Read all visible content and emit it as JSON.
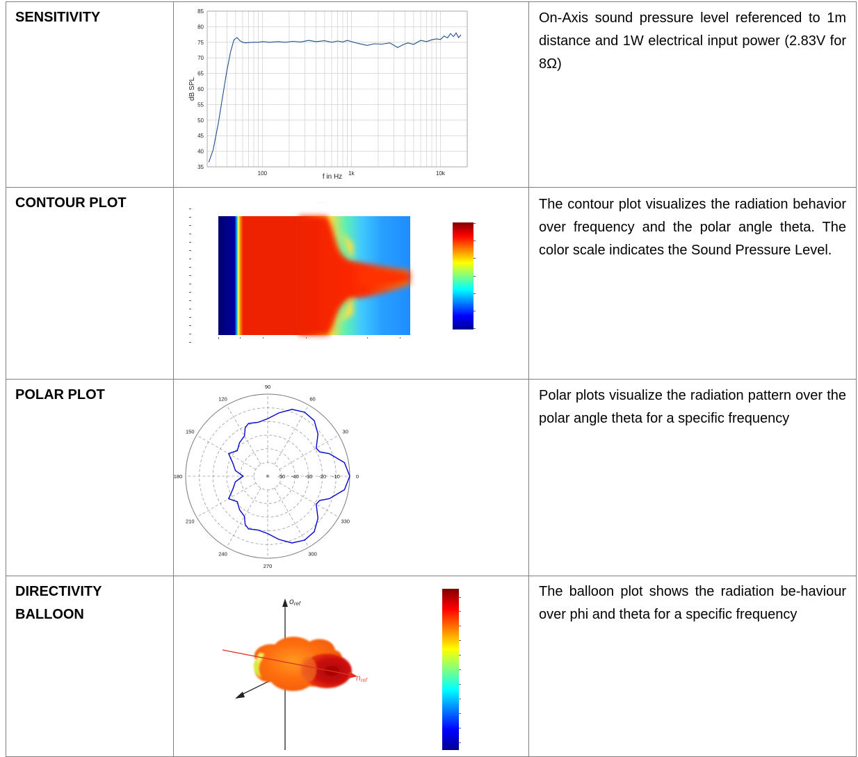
{
  "rows": [
    {
      "label": "SENSITIVITY",
      "description": "On-Axis sound pressure level referenced to 1m distance and 1W electrical input power (2.83V for 8Ω)"
    },
    {
      "label": "CONTOUR PLOT",
      "description": "The contour plot visualizes the radiation behavior over frequency and the polar angle theta. The color scale indicates the Sound Pressure Level."
    },
    {
      "label": "POLAR PLOT",
      "description": "Polar plots visualize the radiation pattern over the polar angle theta for a specific frequency"
    },
    {
      "label": "DIRECTIVITY BALLOON",
      "description": "The balloon plot shows the radiation be-­haviour over phi and theta for a specific frequency"
    }
  ],
  "chart_data": [
    {
      "type": "line",
      "xlabel": "f in Hz",
      "ylabel": "dB SPL",
      "x_scale": "log",
      "xlim": [
        24,
        20000
      ],
      "ylim": [
        35,
        85
      ],
      "grid": true,
      "x_ticks": [
        "100",
        "1k",
        "10k"
      ],
      "y_ticks": [
        35,
        40,
        45,
        50,
        55,
        60,
        65,
        70,
        75,
        80,
        85
      ],
      "series": [
        {
          "color": "#1f4e8c",
          "x": [
            25,
            28,
            32,
            36,
            40,
            44,
            48,
            52,
            56,
            60,
            65,
            70,
            80,
            90,
            100,
            120,
            150,
            180,
            220,
            270,
            330,
            400,
            500,
            600,
            700,
            800,
            900,
            1000,
            1200,
            1500,
            1800,
            2200,
            2700,
            3300,
            3800,
            4300,
            5000,
            6000,
            7000,
            8000,
            9000,
            10000,
            11000,
            12000,
            13000,
            14000,
            15000,
            16000,
            17000
          ],
          "y": [
            36.5,
            40.5,
            49,
            58,
            66,
            72,
            75.8,
            76.5,
            75.5,
            75,
            74.8,
            74.9,
            75,
            75,
            75.2,
            75,
            75.2,
            75,
            75.3,
            75.1,
            75.6,
            75.2,
            75.5,
            75,
            75.4,
            75.1,
            75.6,
            75.2,
            74.6,
            74,
            74.5,
            74.4,
            74.8,
            73.3,
            74.2,
            74.8,
            74.3,
            75.6,
            75.2,
            75.8,
            76.1,
            75.9,
            77,
            76.4,
            77.8,
            76.8,
            78,
            76.5,
            77.4
          ]
        }
      ]
    },
    {
      "type": "heatmap",
      "title": "",
      "colormap": "jet",
      "x_scale": "log",
      "y_axis": "theta",
      "colorbar": true
    },
    {
      "type": "polar",
      "angle_labels": [
        "0",
        "30",
        "60",
        "90",
        "120",
        "150",
        "180",
        "210",
        "240",
        "270",
        "300",
        "330"
      ],
      "radial_labels": [
        "-50",
        "-40",
        "-30",
        "-20",
        "-10"
      ],
      "rlim": [
        -60,
        0
      ],
      "series": [
        {
          "color": "#0000d0",
          "theta": [
            0,
            10,
            20,
            25,
            30,
            40,
            50,
            60,
            70,
            80,
            90,
            100,
            110,
            115,
            120,
            130,
            140,
            150,
            160,
            170,
            180,
            190,
            200,
            210,
            220,
            230,
            240,
            245,
            250,
            260,
            270,
            280,
            290,
            300,
            310,
            320,
            330,
            335,
            340,
            350,
            360
          ],
          "r": [
            0,
            -3,
            -12,
            -18,
            -19,
            -12,
            -7,
            -6,
            -8,
            -13,
            -18,
            -20,
            -19,
            -21,
            -26,
            -28,
            -31,
            -27,
            -33,
            -36,
            -42,
            -36,
            -33,
            -27,
            -31,
            -28,
            -26,
            -21,
            -19,
            -20,
            -18,
            -13,
            -8,
            -6,
            -7,
            -12,
            -19,
            -18,
            -12,
            -3,
            0
          ]
        }
      ]
    },
    {
      "type": "heatmap",
      "subtype": "3d-balloon",
      "colormap": "jet",
      "colorbar": true,
      "axis_labels": [
        "o_ref",
        "n_ref"
      ]
    }
  ]
}
